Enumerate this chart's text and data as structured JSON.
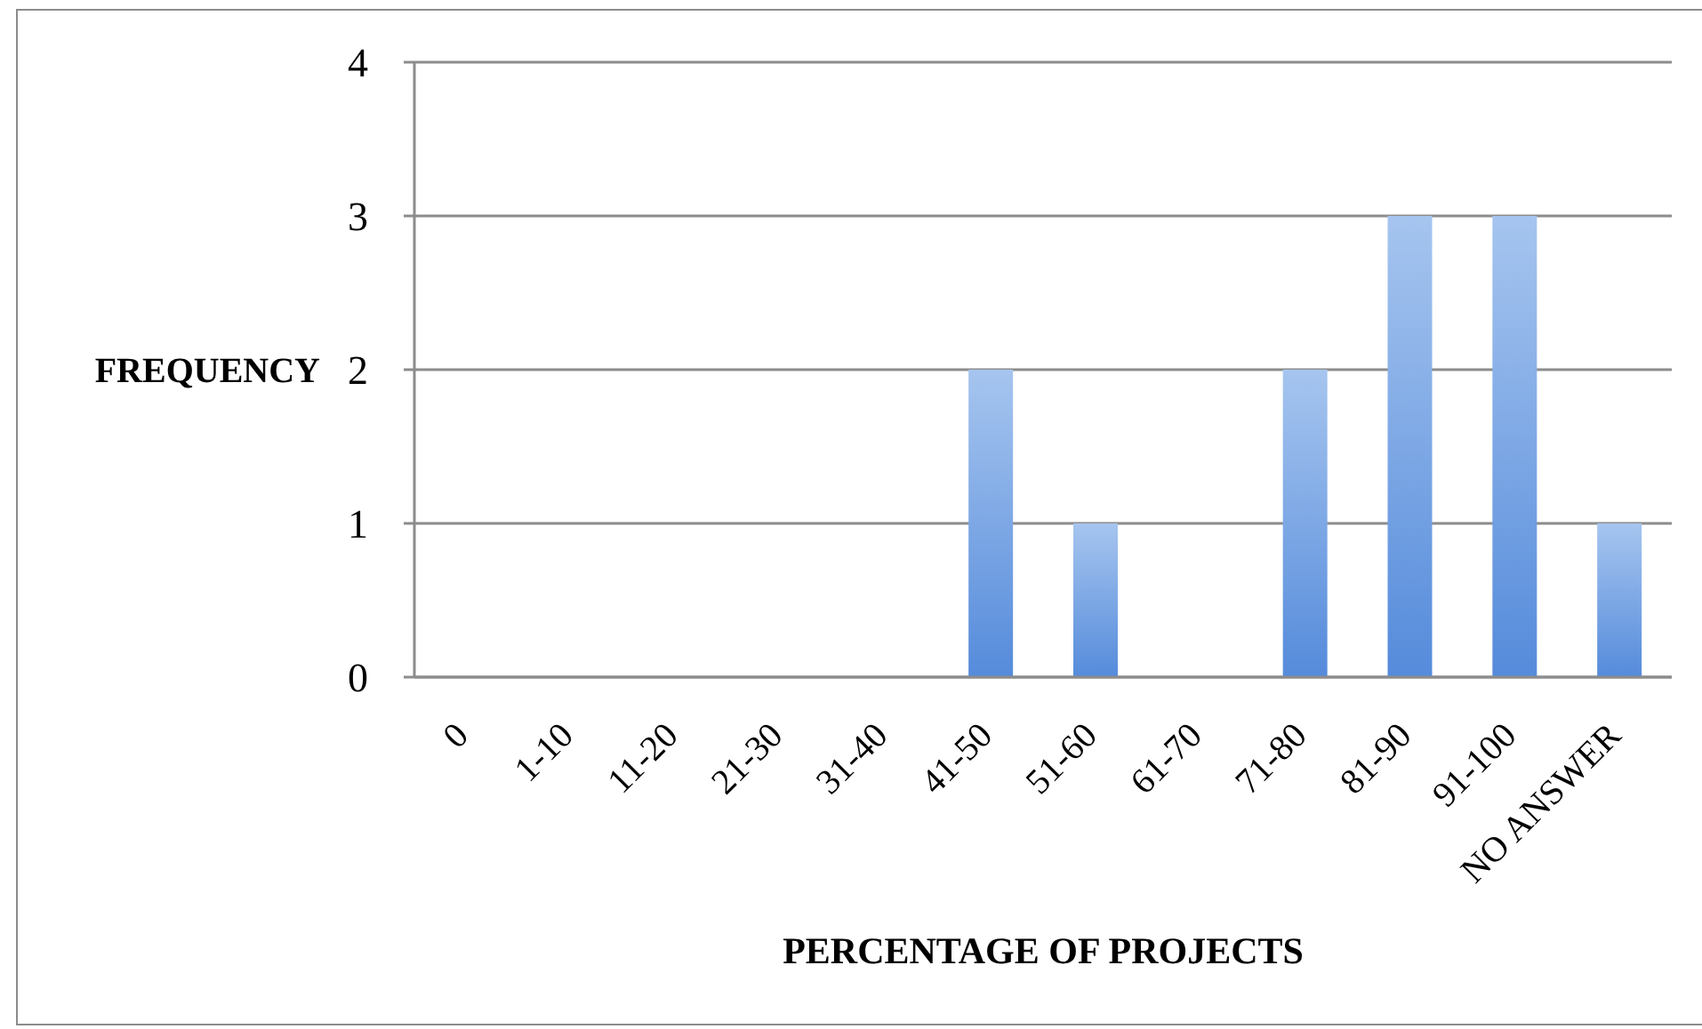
{
  "chart_data": {
    "type": "bar",
    "xlabel": "PERCENTAGE OF PROJECTS",
    "ylabel": "FREQUENCY",
    "categories": [
      "0",
      "1-10",
      "11-20",
      "21-30",
      "31-40",
      "41-50",
      "51-60",
      "61-70",
      "71-80",
      "81-90",
      "91-100",
      "NO ANSWER"
    ],
    "values": [
      0,
      0,
      0,
      0,
      0,
      2,
      1,
      0,
      2,
      3,
      3,
      1
    ],
    "color": "#6b9fe4",
    "ylim": [
      0,
      4
    ],
    "yticks": [
      0,
      1,
      2,
      3,
      4
    ],
    "grid": "y"
  }
}
